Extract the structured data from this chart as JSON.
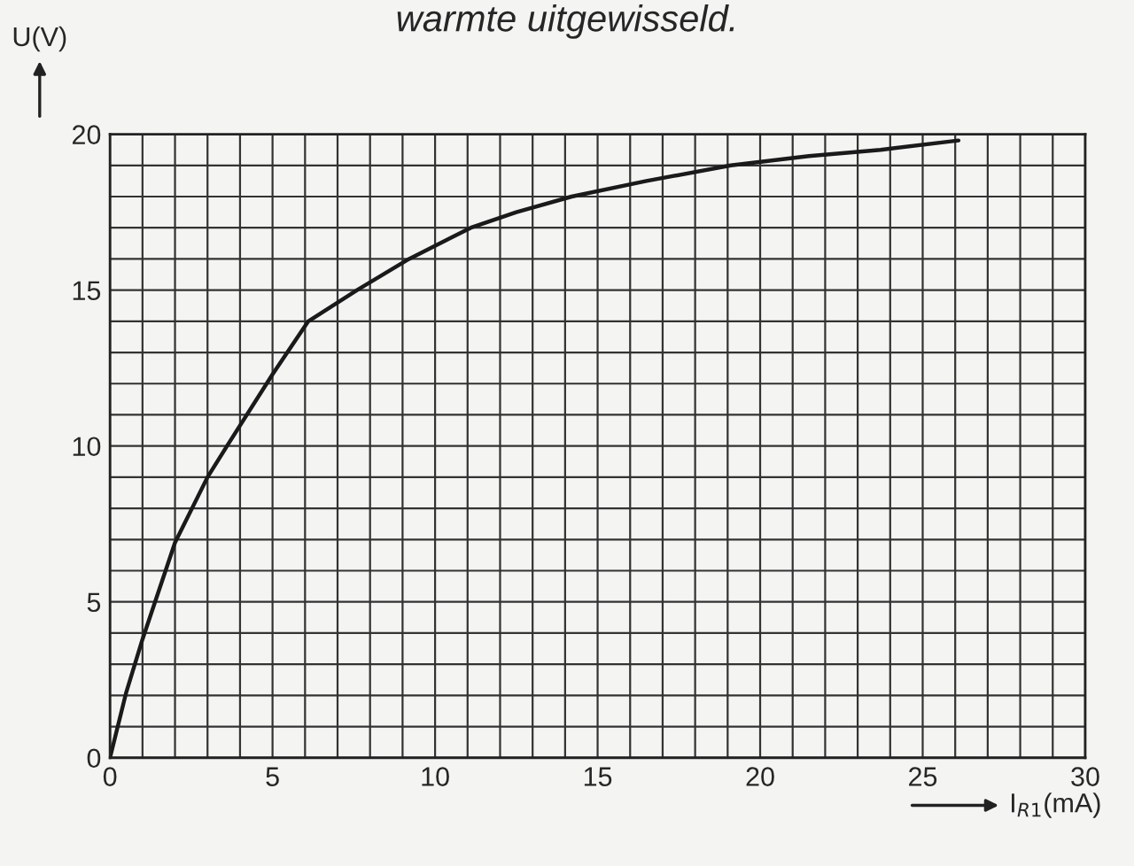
{
  "chart_data": {
    "type": "line",
    "annotations": [
      "warmte uitgewisseld."
    ],
    "xlabel": "I$_{R1}$(mA)",
    "ylabel": "U(V)",
    "x": [
      0,
      0.5,
      1,
      2,
      3,
      3.6,
      5,
      6.1,
      7.6,
      9.2,
      11.1,
      12.5,
      14.2,
      16.5,
      19.1,
      21.5,
      23.7,
      26.1
    ],
    "series": [
      {
        "color": "#1a1a1a",
        "values": [
          0,
          2.1,
          3.8,
          6.9,
          9,
          10,
          12.3,
          14,
          15,
          16,
          17,
          17.5,
          18,
          18.5,
          19,
          19.3,
          19.5,
          19.8
        ]
      }
    ],
    "xlim": [
      0,
      30
    ],
    "ylim": [
      0,
      20
    ],
    "xticks": [
      0,
      5,
      10,
      15,
      20,
      25,
      30
    ],
    "yticks": [
      0,
      5,
      10,
      15,
      20
    ],
    "grid": true,
    "marker": "none",
    "line_style": "solid"
  }
}
